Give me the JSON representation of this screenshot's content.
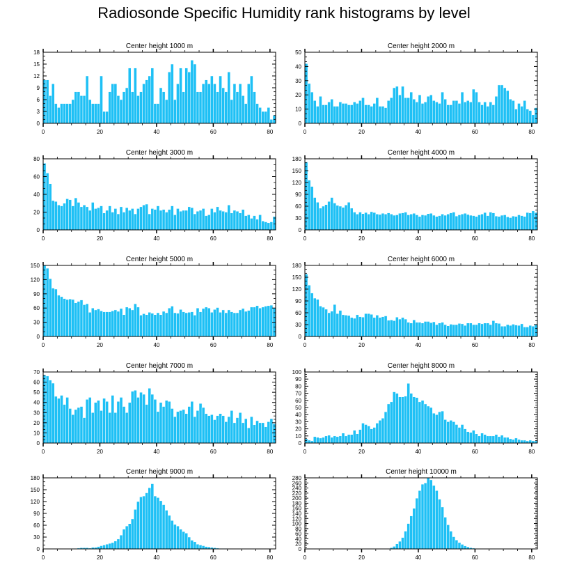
{
  "figure_title": "Radiosonde Specific Humidity rank histograms by level",
  "colors": {
    "bar": "#1ec0f5",
    "bar_edge": "#ffffff",
    "axis": "#000000"
  },
  "chart_data": [
    {
      "type": "bar",
      "title": "Center height 1000 m",
      "xlim": [
        0,
        82
      ],
      "xticks": [
        0,
        20,
        40,
        60,
        80
      ],
      "ylim": [
        0,
        18
      ],
      "yticks": [
        0,
        3,
        6,
        9,
        12,
        15,
        18
      ],
      "values": [
        11,
        11,
        7,
        10,
        5,
        4,
        5,
        5,
        5,
        5,
        6,
        8,
        8,
        7,
        7,
        12,
        6,
        5,
        5,
        5,
        12,
        3,
        3,
        8,
        10,
        10,
        7,
        6,
        8,
        9,
        14,
        8,
        14,
        7,
        8,
        10,
        11,
        12,
        14,
        5,
        5,
        9,
        8,
        6,
        13,
        15,
        6,
        10,
        14,
        8,
        14,
        13,
        16,
        15,
        8,
        8,
        10,
        11,
        10,
        12,
        10,
        8,
        12,
        9,
        8,
        13,
        6,
        10,
        8,
        10,
        7,
        5,
        10,
        12,
        8,
        5,
        4,
        3,
        3,
        4,
        1,
        2
      ]
    },
    {
      "type": "bar",
      "title": "Center height 2000 m",
      "xlim": [
        0,
        82
      ],
      "xticks": [
        0,
        20,
        40,
        60,
        80
      ],
      "ylim": [
        0,
        50
      ],
      "yticks": [
        0,
        10,
        20,
        30,
        40,
        50
      ],
      "values": [
        42,
        28,
        22,
        16,
        12,
        19,
        13,
        13,
        15,
        17,
        12,
        12,
        15,
        14,
        14,
        13,
        13,
        15,
        14,
        16,
        18,
        13,
        13,
        12,
        14,
        18,
        12,
        12,
        11,
        16,
        18,
        25,
        26,
        20,
        26,
        18,
        18,
        22,
        17,
        15,
        20,
        14,
        15,
        19,
        20,
        16,
        15,
        14,
        22,
        17,
        13,
        13,
        16,
        16,
        14,
        22,
        15,
        16,
        15,
        24,
        22,
        15,
        13,
        15,
        12,
        15,
        13,
        19,
        27,
        27,
        25,
        23,
        17,
        16,
        10,
        14,
        12,
        16,
        10,
        9,
        6,
        11
      ]
    },
    {
      "type": "bar",
      "title": "Center height 3000 m",
      "xlim": [
        0,
        82
      ],
      "xticks": [
        0,
        20,
        40,
        60,
        80
      ],
      "ylim": [
        0,
        80
      ],
      "yticks": [
        0,
        20,
        40,
        60,
        80
      ],
      "values": [
        75,
        64,
        52,
        33,
        32,
        28,
        27,
        30,
        35,
        34,
        27,
        36,
        31,
        26,
        28,
        26,
        22,
        31,
        24,
        25,
        27,
        19,
        22,
        27,
        20,
        24,
        18,
        26,
        20,
        25,
        22,
        24,
        18,
        24,
        26,
        28,
        29,
        18,
        24,
        23,
        27,
        22,
        23,
        20,
        23,
        27,
        17,
        24,
        21,
        22,
        22,
        26,
        25,
        18,
        21,
        22,
        24,
        16,
        17,
        24,
        20,
        26,
        22,
        21,
        20,
        28,
        19,
        22,
        21,
        19,
        23,
        16,
        17,
        13,
        16,
        12,
        17,
        10,
        9,
        8,
        9,
        15
      ]
    },
    {
      "type": "bar",
      "title": "Center height 4000 m",
      "xlim": [
        0,
        82
      ],
      "xticks": [
        0,
        20,
        40,
        60,
        80
      ],
      "ylim": [
        0,
        180
      ],
      "yticks": [
        0,
        30,
        60,
        90,
        120,
        150,
        180
      ],
      "values": [
        172,
        126,
        110,
        82,
        70,
        55,
        60,
        64,
        72,
        82,
        68,
        62,
        60,
        57,
        63,
        70,
        55,
        45,
        40,
        45,
        41,
        44,
        40,
        46,
        44,
        40,
        39,
        42,
        40,
        43,
        40,
        37,
        38,
        42,
        43,
        45,
        38,
        40,
        42,
        38,
        34,
        38,
        37,
        41,
        42,
        37,
        34,
        36,
        40,
        37,
        40,
        43,
        45,
        35,
        38,
        40,
        42,
        39,
        37,
        36,
        34,
        38,
        40,
        44,
        36,
        45,
        43,
        35,
        34,
        37,
        38,
        33,
        31,
        35,
        34,
        38,
        36,
        34,
        44,
        43,
        48,
        44
      ]
    },
    {
      "type": "bar",
      "title": "Center height 5000 m",
      "xlim": [
        0,
        82
      ],
      "xticks": [
        0,
        20,
        40,
        60,
        80
      ],
      "ylim": [
        0,
        150
      ],
      "yticks": [
        0,
        30,
        60,
        90,
        120,
        150
      ],
      "values": [
        152,
        144,
        122,
        102,
        100,
        87,
        84,
        80,
        78,
        79,
        78,
        71,
        74,
        77,
        67,
        69,
        51,
        60,
        56,
        58,
        54,
        52,
        52,
        52,
        54,
        56,
        53,
        59,
        46,
        62,
        60,
        56,
        69,
        62,
        45,
        48,
        46,
        51,
        49,
        46,
        50,
        46,
        53,
        50,
        60,
        64,
        50,
        49,
        57,
        52,
        50,
        51,
        52,
        45,
        60,
        52,
        59,
        62,
        60,
        51,
        57,
        61,
        51,
        56,
        50,
        56,
        52,
        50,
        50,
        56,
        59,
        53,
        55,
        62,
        62,
        65,
        60,
        62,
        64,
        65,
        66,
        60
      ]
    },
    {
      "type": "bar",
      "title": "Center height 6000 m",
      "xlim": [
        0,
        82
      ],
      "xticks": [
        0,
        20,
        40,
        60,
        80
      ],
      "ylim": [
        0,
        180
      ],
      "yticks": [
        0,
        30,
        60,
        90,
        120,
        150,
        180
      ],
      "values": [
        158,
        130,
        110,
        97,
        94,
        77,
        74,
        69,
        60,
        64,
        81,
        58,
        66,
        55,
        54,
        53,
        48,
        46,
        55,
        50,
        49,
        58,
        58,
        56,
        48,
        54,
        48,
        50,
        52,
        41,
        42,
        40,
        49,
        44,
        48,
        44,
        36,
        34,
        42,
        36,
        36,
        34,
        38,
        38,
        35,
        37,
        30,
        34,
        36,
        30,
        27,
        31,
        30,
        30,
        33,
        32,
        28,
        34,
        34,
        30,
        30,
        34,
        32,
        34,
        34,
        30,
        40,
        34,
        33,
        26,
        26,
        30,
        28,
        31,
        29,
        28,
        32,
        24,
        24,
        28,
        26,
        30
      ]
    },
    {
      "type": "bar",
      "title": "Center height 7000 m",
      "xlim": [
        0,
        82
      ],
      "xticks": [
        0,
        20,
        40,
        60,
        80
      ],
      "ylim": [
        0,
        70
      ],
      "yticks": [
        0,
        10,
        20,
        30,
        40,
        50,
        60,
        70
      ],
      "values": [
        67,
        66,
        62,
        59,
        46,
        44,
        47,
        38,
        45,
        34,
        28,
        33,
        35,
        36,
        25,
        43,
        45,
        30,
        40,
        42,
        32,
        44,
        41,
        30,
        47,
        30,
        41,
        45,
        36,
        30,
        40,
        51,
        52,
        45,
        50,
        48,
        38,
        54,
        48,
        43,
        31,
        40,
        36,
        42,
        41,
        34,
        26,
        31,
        32,
        33,
        29,
        36,
        41,
        26,
        32,
        39,
        35,
        29,
        27,
        28,
        23,
        27,
        29,
        27,
        21,
        26,
        32,
        20,
        25,
        30,
        20,
        24,
        15,
        26,
        18,
        22,
        20,
        20,
        16,
        21,
        24,
        19
      ]
    },
    {
      "type": "bar",
      "title": "Center height 8000 m",
      "xlim": [
        0,
        82
      ],
      "xticks": [
        0,
        20,
        40,
        60,
        80
      ],
      "ylim": [
        0,
        100
      ],
      "yticks": [
        0,
        10,
        20,
        30,
        40,
        50,
        60,
        70,
        80,
        90,
        100
      ],
      "values": [
        6,
        4,
        3,
        9,
        8,
        7,
        8,
        10,
        11,
        8,
        10,
        9,
        10,
        14,
        10,
        12,
        12,
        18,
        13,
        19,
        28,
        26,
        24,
        20,
        22,
        28,
        32,
        35,
        44,
        55,
        58,
        72,
        70,
        65,
        65,
        66,
        84,
        70,
        65,
        64,
        58,
        60,
        55,
        52,
        50,
        42,
        40,
        44,
        45,
        33,
        30,
        32,
        30,
        26,
        22,
        26,
        20,
        16,
        15,
        18,
        13,
        10,
        14,
        12,
        10,
        10,
        10,
        12,
        9,
        11,
        8,
        8,
        6,
        5,
        7,
        5,
        4,
        4,
        3,
        4,
        3,
        3
      ]
    },
    {
      "type": "bar",
      "title": "Center height 9000 m",
      "xlim": [
        0,
        82
      ],
      "xticks": [
        0,
        20,
        40,
        60,
        80
      ],
      "ylim": [
        0,
        180
      ],
      "yticks": [
        0,
        30,
        60,
        90,
        120,
        150,
        180
      ],
      "values": [
        0,
        0,
        0,
        0,
        0,
        0,
        0,
        0,
        0,
        0,
        1,
        1,
        2,
        3,
        3,
        3,
        2,
        4,
        4,
        6,
        8,
        10,
        12,
        14,
        16,
        20,
        25,
        35,
        50,
        58,
        64,
        76,
        100,
        120,
        132,
        134,
        142,
        155,
        165,
        134,
        130,
        122,
        112,
        98,
        85,
        72,
        62,
        58,
        50,
        44,
        40,
        30,
        22,
        18,
        12,
        10,
        8,
        6,
        5,
        4,
        3,
        2,
        1,
        1,
        1,
        0,
        0,
        0,
        0,
        0,
        0,
        0,
        0,
        0,
        0,
        0,
        0,
        0,
        0,
        0,
        0,
        0
      ]
    },
    {
      "type": "bar",
      "title": "Center height 10000 m",
      "xlim": [
        0,
        82
      ],
      "xticks": [
        0,
        20,
        40,
        60,
        80
      ],
      "ylim": [
        0,
        280
      ],
      "yticks": [
        0,
        20,
        40,
        60,
        80,
        100,
        120,
        140,
        160,
        180,
        200,
        220,
        240,
        260,
        280
      ],
      "values": [
        0,
        0,
        0,
        0,
        0,
        0,
        0,
        0,
        0,
        0,
        0,
        0,
        0,
        0,
        0,
        0,
        0,
        0,
        0,
        0,
        0,
        0,
        0,
        0,
        0,
        0,
        0,
        0,
        1,
        2,
        5,
        10,
        20,
        30,
        45,
        70,
        100,
        130,
        160,
        200,
        230,
        255,
        260,
        282,
        272,
        250,
        230,
        196,
        165,
        125,
        95,
        70,
        48,
        35,
        25,
        18,
        12,
        8,
        5,
        3,
        2,
        1,
        0,
        0,
        0,
        0,
        0,
        0,
        0,
        0,
        0,
        0,
        0,
        0,
        0,
        0,
        0,
        0,
        0,
        0,
        0,
        0
      ]
    }
  ]
}
